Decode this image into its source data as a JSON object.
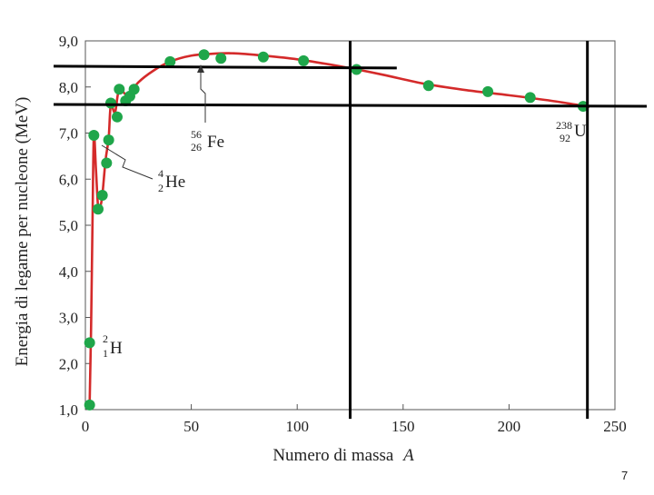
{
  "chart_data": {
    "type": "scatter",
    "xlabel_main": "Numero di massa",
    "xlabel_var": "A",
    "ylabel": "Energia di legame per nucleone (MeV)",
    "xlim": [
      0,
      250
    ],
    "ylim": [
      1.0,
      9.0
    ],
    "x_ticks": [
      "0",
      "50",
      "100",
      "150",
      "200",
      "250"
    ],
    "y_ticks": [
      "1,0",
      "2,0",
      "3,0",
      "4,0",
      "5,0",
      "6,0",
      "7,0",
      "8,0",
      "9,0"
    ],
    "grid": false,
    "series_color": "#1fa64a",
    "curve_color": "#d42a2a",
    "points": [
      {
        "x": 2,
        "y": 1.1
      },
      {
        "x": 2,
        "y": 2.45
      },
      {
        "x": 4,
        "y": 6.95
      },
      {
        "x": 6,
        "y": 5.35
      },
      {
        "x": 8,
        "y": 5.65
      },
      {
        "x": 10,
        "y": 6.35
      },
      {
        "x": 11,
        "y": 6.85
      },
      {
        "x": 12,
        "y": 7.65
      },
      {
        "x": 15,
        "y": 7.35
      },
      {
        "x": 16,
        "y": 7.95
      },
      {
        "x": 19,
        "y": 7.7
      },
      {
        "x": 21,
        "y": 7.8
      },
      {
        "x": 23,
        "y": 7.95
      },
      {
        "x": 40,
        "y": 8.55
      },
      {
        "x": 56,
        "y": 8.7
      },
      {
        "x": 64,
        "y": 8.62
      },
      {
        "x": 84,
        "y": 8.65
      },
      {
        "x": 103,
        "y": 8.57
      },
      {
        "x": 128,
        "y": 8.38
      },
      {
        "x": 162,
        "y": 8.03
      },
      {
        "x": 190,
        "y": 7.9
      },
      {
        "x": 210,
        "y": 7.77
      },
      {
        "x": 235,
        "y": 7.58
      }
    ],
    "curve": [
      {
        "x": 2,
        "y": 1.1
      },
      {
        "x": 2.7,
        "y": 2.8
      },
      {
        "x": 3.4,
        "y": 5.2
      },
      {
        "x": 4,
        "y": 6.95
      },
      {
        "x": 5,
        "y": 6.2
      },
      {
        "x": 6,
        "y": 5.4
      },
      {
        "x": 7,
        "y": 5.4
      },
      {
        "x": 8,
        "y": 5.65
      },
      {
        "x": 9.5,
        "y": 6.4
      },
      {
        "x": 11,
        "y": 6.9
      },
      {
        "x": 12,
        "y": 7.6
      },
      {
        "x": 14,
        "y": 7.45
      },
      {
        "x": 16,
        "y": 7.95
      },
      {
        "x": 20,
        "y": 7.82
      },
      {
        "x": 25,
        "y": 8.1
      },
      {
        "x": 32,
        "y": 8.35
      },
      {
        "x": 40,
        "y": 8.55
      },
      {
        "x": 50,
        "y": 8.68
      },
      {
        "x": 60,
        "y": 8.72
      },
      {
        "x": 70,
        "y": 8.73
      },
      {
        "x": 84,
        "y": 8.68
      },
      {
        "x": 100,
        "y": 8.6
      },
      {
        "x": 120,
        "y": 8.45
      },
      {
        "x": 140,
        "y": 8.27
      },
      {
        "x": 160,
        "y": 8.07
      },
      {
        "x": 180,
        "y": 7.93
      },
      {
        "x": 200,
        "y": 7.82
      },
      {
        "x": 220,
        "y": 7.7
      },
      {
        "x": 238,
        "y": 7.57
      }
    ],
    "annotations": {
      "h2": {
        "mass": "2",
        "charge": "1",
        "symbol": "H"
      },
      "he4": {
        "mass": "4",
        "charge": "2",
        "symbol": "He"
      },
      "fe56": {
        "mass": "56",
        "charge": "26",
        "symbol": "Fe"
      },
      "u238": {
        "mass": "238",
        "charge": "92",
        "symbol": "U"
      }
    },
    "reference_lines": {
      "horizontal": [
        {
          "y": 8.45,
          "x_from": -15,
          "x_to": 147
        },
        {
          "y": 7.62,
          "x_from": -15,
          "x_to": 265
        }
      ],
      "vertical": [
        {
          "x": 125,
          "y_from": 0.8,
          "y_to": 9.0
        },
        {
          "x": 237,
          "y_from": 0.8,
          "y_to": 9.0
        }
      ]
    }
  },
  "page_number": "7"
}
